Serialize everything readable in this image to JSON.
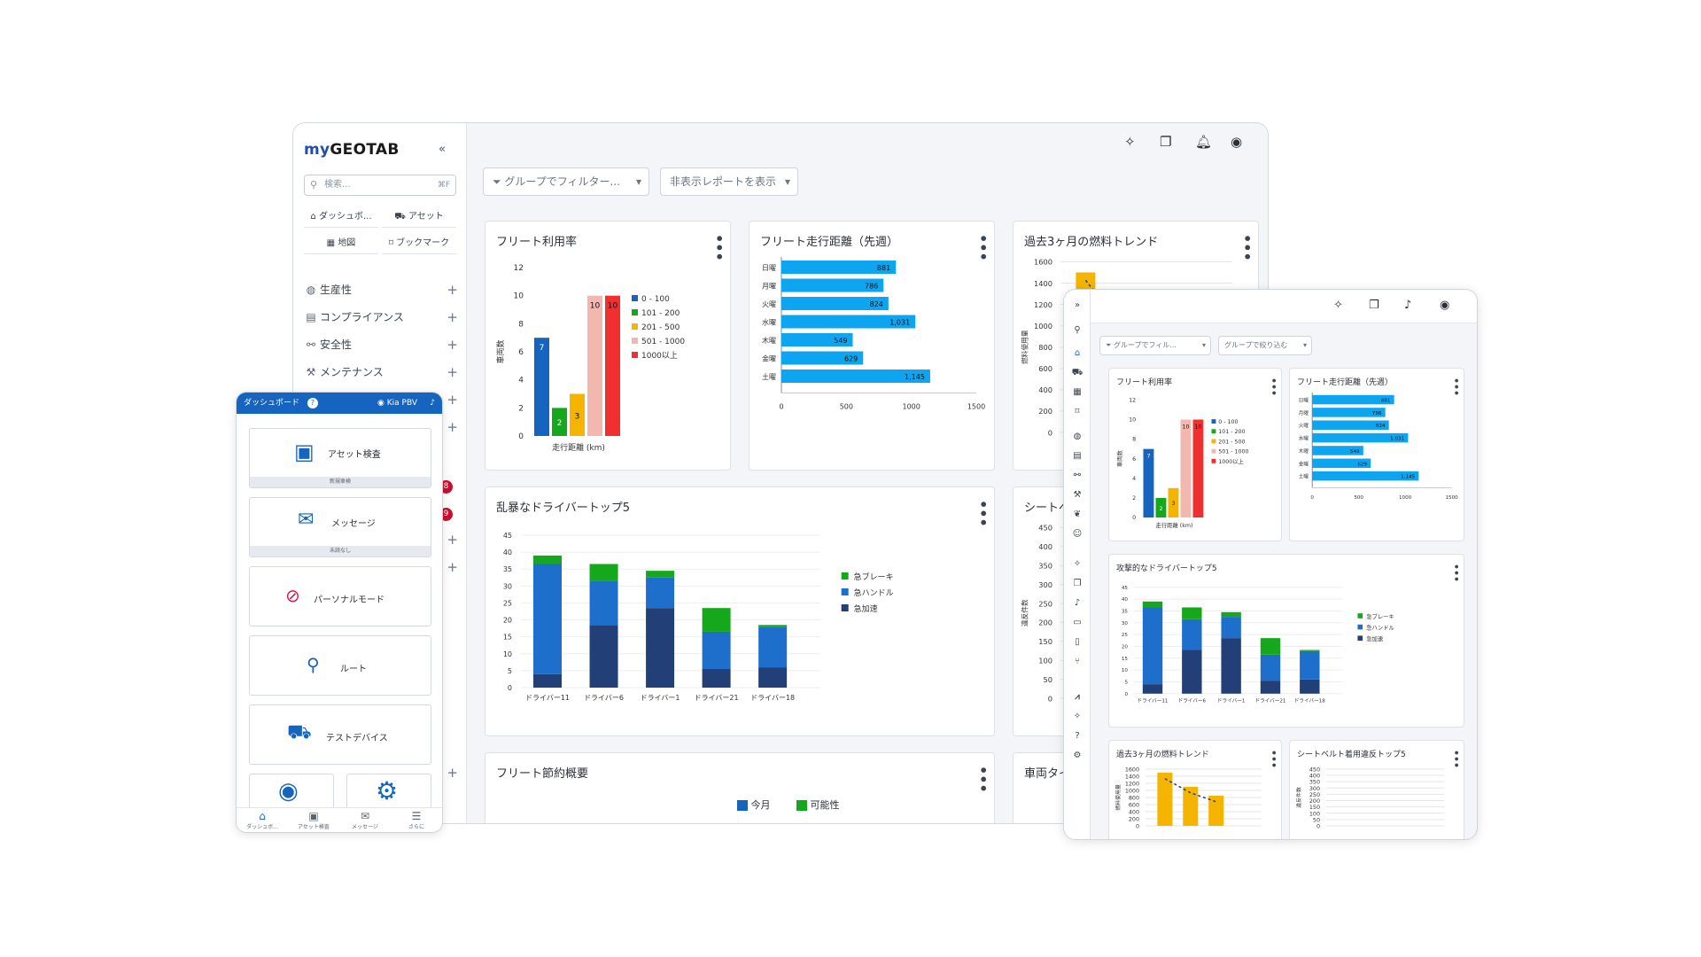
{
  "desktop": {
    "logo_my": "my",
    "logo_geotab": "GEOTAB",
    "collapse": "«",
    "search": {
      "placeholder": "検索...",
      "shortcut": "⌘F"
    },
    "quick": [
      "ダッシュボ...",
      "アセット",
      "地図",
      "ブックマーク"
    ],
    "nav": [
      "生産性",
      "コンプライアンス",
      "安全性",
      "メンテナンス"
    ],
    "badges": [
      "8",
      "9"
    ],
    "filter_group": "グループでフィルター...",
    "filter_hidden": "非表示レポートを表示",
    "cards": {
      "util": "フリート利用率",
      "dist": "フリート走行距離（先週）",
      "fuel": "過去3ヶ月の燃料トレンド",
      "aggr": "乱暴なドライバートップ5",
      "seat": "シートベル",
      "save": "フリート節約概要",
      "tire": "車両タイ"
    },
    "save_legend": [
      "今月",
      "可能性"
    ]
  },
  "mobile": {
    "title": "ダッシュボード",
    "help": "?",
    "user": "Kia PBV",
    "tiles": [
      {
        "label": "アセット検査",
        "sub": "新規車検"
      },
      {
        "label": "メッセージ",
        "sub": "未読なし"
      },
      {
        "label": "パーソナルモード",
        "sub": ""
      },
      {
        "label": "ルート",
        "sub": ""
      },
      {
        "label": "テストデバイス",
        "sub": ""
      }
    ],
    "nav": [
      "ダッシュボ...",
      "アセット検査",
      "メッセージ",
      "さらに"
    ]
  },
  "tablet": {
    "filter_group": "グループでフィル...",
    "filter_narrow": "グループで絞り込む",
    "cards": {
      "util": "フリート利用率",
      "dist": "フリート走行距離（先週）",
      "aggr": "攻撃的なドライバートップ5",
      "fuel": "過去3ヶ月の燃料トレンド",
      "seat": "シートベルト着用違反トップ5"
    }
  },
  "colors": {
    "blue": "#1565c0",
    "cyan": "#0ea5f0",
    "green": "#16a81c",
    "orange": "#f5b400",
    "pink": "#f2b8b0",
    "red": "#f03030",
    "navy": "#233f78",
    "mid": "#1e6fcc"
  },
  "chart_data": [
    {
      "type": "bar",
      "id": "util",
      "categories": [
        "0 - 100",
        "101 - 200",
        "201 - 500",
        "501 - 1000",
        "1000以上"
      ],
      "values": [
        7,
        2,
        3,
        10,
        10
      ],
      "xlabel": "走行距離 (km)",
      "ylabel": "車両数",
      "ylim": [
        0,
        12
      ],
      "yticks": [
        0,
        2,
        4,
        6,
        8,
        10,
        12
      ],
      "legend": [
        "0 - 100",
        "101 - 200",
        "201 - 500",
        "501 - 1000",
        "1000以上"
      ]
    },
    {
      "type": "bar",
      "id": "dist",
      "orientation": "horizontal",
      "categories": [
        "日曜",
        "月曜",
        "火曜",
        "水曜",
        "木曜",
        "金曜",
        "土曜"
      ],
      "values": [
        881,
        786,
        824,
        1031,
        549,
        629,
        1145
      ],
      "labels": [
        "881",
        "786",
        "824",
        "1,031",
        "549",
        "629",
        "1,145"
      ],
      "xlim": [
        0,
        1500
      ],
      "xticks": [
        "0",
        "500",
        "1000",
        "1500"
      ]
    },
    {
      "type": "bar",
      "id": "aggr",
      "stacked": true,
      "categories": [
        "ドライバー11",
        "ドライバー6",
        "ドライバー1",
        "ドライバー21",
        "ドライバー18"
      ],
      "series": [
        {
          "name": "急加速",
          "values": [
            4,
            18.5,
            23.5,
            5.5,
            6
          ]
        },
        {
          "name": "急ハンドル",
          "values": [
            32.5,
            13,
            9,
            11,
            12
          ]
        },
        {
          "name": "急ブレーキ",
          "values": [
            2.5,
            5,
            2,
            7,
            0.5
          ]
        }
      ],
      "ylim": [
        0,
        45
      ],
      "yticks": [
        0,
        5,
        10,
        15,
        20,
        25,
        30,
        35,
        40,
        45
      ]
    },
    {
      "type": "bar",
      "id": "fuel",
      "ylabel": "燃料使用量",
      "yticks": [
        0,
        200,
        400,
        600,
        800,
        1000,
        1200,
        1400,
        1600
      ],
      "values": [
        1500,
        1100,
        850
      ]
    },
    {
      "type": "bar",
      "id": "seat",
      "ylabel": "違反件数",
      "yticks": [
        0,
        50,
        100,
        150,
        200,
        250,
        300,
        350,
        400,
        450
      ]
    }
  ]
}
